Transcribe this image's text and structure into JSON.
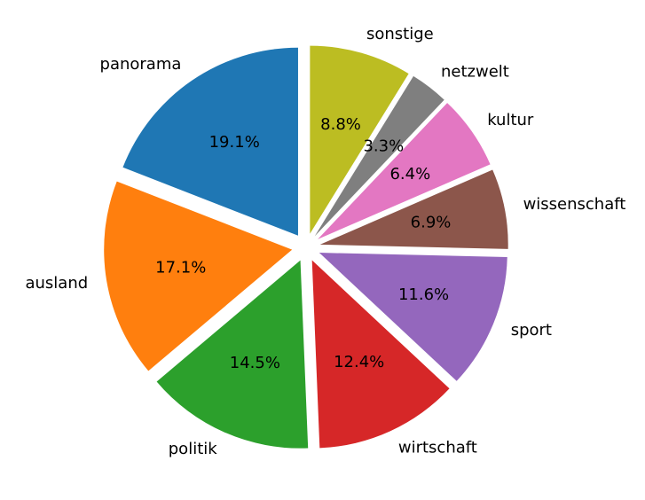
{
  "chart_data": {
    "type": "pie",
    "title": "",
    "start_angle_deg": 90,
    "direction": "counterclockwise",
    "explode": true,
    "slices": [
      {
        "label": "panorama",
        "value": 19.1,
        "pct_label": "19.1%",
        "color": "#1f77b4"
      },
      {
        "label": "ausland",
        "value": 17.1,
        "pct_label": "17.1%",
        "color": "#ff7f0e"
      },
      {
        "label": "politik",
        "value": 14.5,
        "pct_label": "14.5%",
        "color": "#2ca02c"
      },
      {
        "label": "wirtschaft",
        "value": 12.4,
        "pct_label": "12.4%",
        "color": "#d62728"
      },
      {
        "label": "sport",
        "value": 11.6,
        "pct_label": "11.6%",
        "color": "#9467bd"
      },
      {
        "label": "wissenschaft",
        "value": 6.9,
        "pct_label": "6.9%",
        "color": "#8c564b"
      },
      {
        "label": "kultur",
        "value": 6.4,
        "pct_label": "6.4%",
        "color": "#e377c2"
      },
      {
        "label": "netzwelt",
        "value": 3.3,
        "pct_label": "3.3%",
        "color": "#7f7f7f"
      },
      {
        "label": "sonstige",
        "value": 8.8,
        "pct_label": "8.8%",
        "color": "#bcbd22"
      }
    ]
  }
}
